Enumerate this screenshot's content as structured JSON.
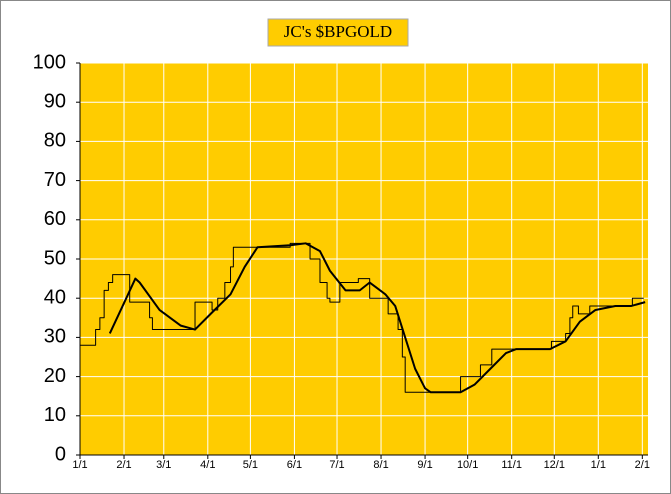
{
  "chart_data": {
    "type": "line",
    "title": "JC's $BPGOLD",
    "background": "#ffcc00",
    "grid": true,
    "xlim": [
      0,
      400
    ],
    "ylim": [
      0,
      100
    ],
    "yticks": [
      0,
      10,
      20,
      30,
      40,
      50,
      60,
      70,
      80,
      90,
      100
    ],
    "xticks": [
      {
        "value": 0,
        "label": "1/1"
      },
      {
        "value": 31,
        "label": "2/1"
      },
      {
        "value": 59,
        "label": "3/1"
      },
      {
        "value": 90,
        "label": "4/1"
      },
      {
        "value": 120,
        "label": "5/1"
      },
      {
        "value": 151,
        "label": "6/1"
      },
      {
        "value": 181,
        "label": "7/1"
      },
      {
        "value": 212,
        "label": "8/1"
      },
      {
        "value": 243,
        "label": "9/1"
      },
      {
        "value": 273,
        "label": "10/1"
      },
      {
        "value": 304,
        "label": "11/1"
      },
      {
        "value": 334,
        "label": "12/1"
      },
      {
        "value": 365,
        "label": "1/1"
      },
      {
        "value": 396,
        "label": "2/1"
      }
    ],
    "series": [
      {
        "color": "#000000",
        "width": 1,
        "x": [
          0,
          11,
          11,
          14,
          14,
          17,
          17,
          20,
          20,
          23,
          23,
          35,
          35,
          49,
          49,
          51,
          51,
          81,
          81,
          93,
          93,
          97,
          97,
          102,
          102,
          106,
          106,
          108,
          108,
          148,
          148,
          162,
          162,
          169,
          169,
          174,
          174,
          176,
          176,
          183,
          183,
          196,
          196,
          204,
          204,
          217,
          217,
          224,
          224,
          227,
          227,
          229,
          229,
          268,
          268,
          282,
          282,
          290,
          290,
          332,
          332,
          342,
          342,
          345,
          345,
          347,
          347,
          351,
          351,
          359,
          359,
          389,
          389,
          397
        ],
        "values": [
          28,
          28,
          32,
          32,
          35,
          35,
          42,
          42,
          44,
          44,
          46,
          46,
          39,
          39,
          35,
          35,
          32,
          32,
          39,
          39,
          37,
          37,
          40,
          40,
          44,
          44,
          48,
          48,
          53,
          53,
          54,
          54,
          50,
          50,
          44,
          44,
          40,
          40,
          39,
          39,
          44,
          44,
          45,
          45,
          40,
          40,
          36,
          36,
          32,
          32,
          25,
          25,
          16,
          16,
          20,
          20,
          23,
          23,
          27,
          27,
          29,
          29,
          31,
          31,
          35,
          35,
          38,
          38,
          36,
          36,
          38,
          38,
          40,
          40
        ]
      },
      {
        "color": "#000000",
        "width": 2,
        "x": [
          21,
          39,
          42,
          56,
          71,
          81,
          92,
          106,
          116,
          125,
          148,
          159,
          169,
          176,
          187,
          197,
          204,
          215,
          222,
          229,
          236,
          243,
          247,
          268,
          278,
          289,
          300,
          307,
          331,
          342,
          352,
          363,
          377,
          388,
          398
        ],
        "values": [
          31,
          45,
          44,
          37,
          33,
          32,
          36,
          41,
          48,
          53,
          53.5,
          54,
          52,
          47,
          42,
          42,
          44,
          41,
          38,
          30,
          22,
          17,
          16,
          16,
          18,
          22,
          26,
          27,
          27,
          29,
          34,
          37,
          38,
          38,
          39
        ]
      }
    ]
  }
}
